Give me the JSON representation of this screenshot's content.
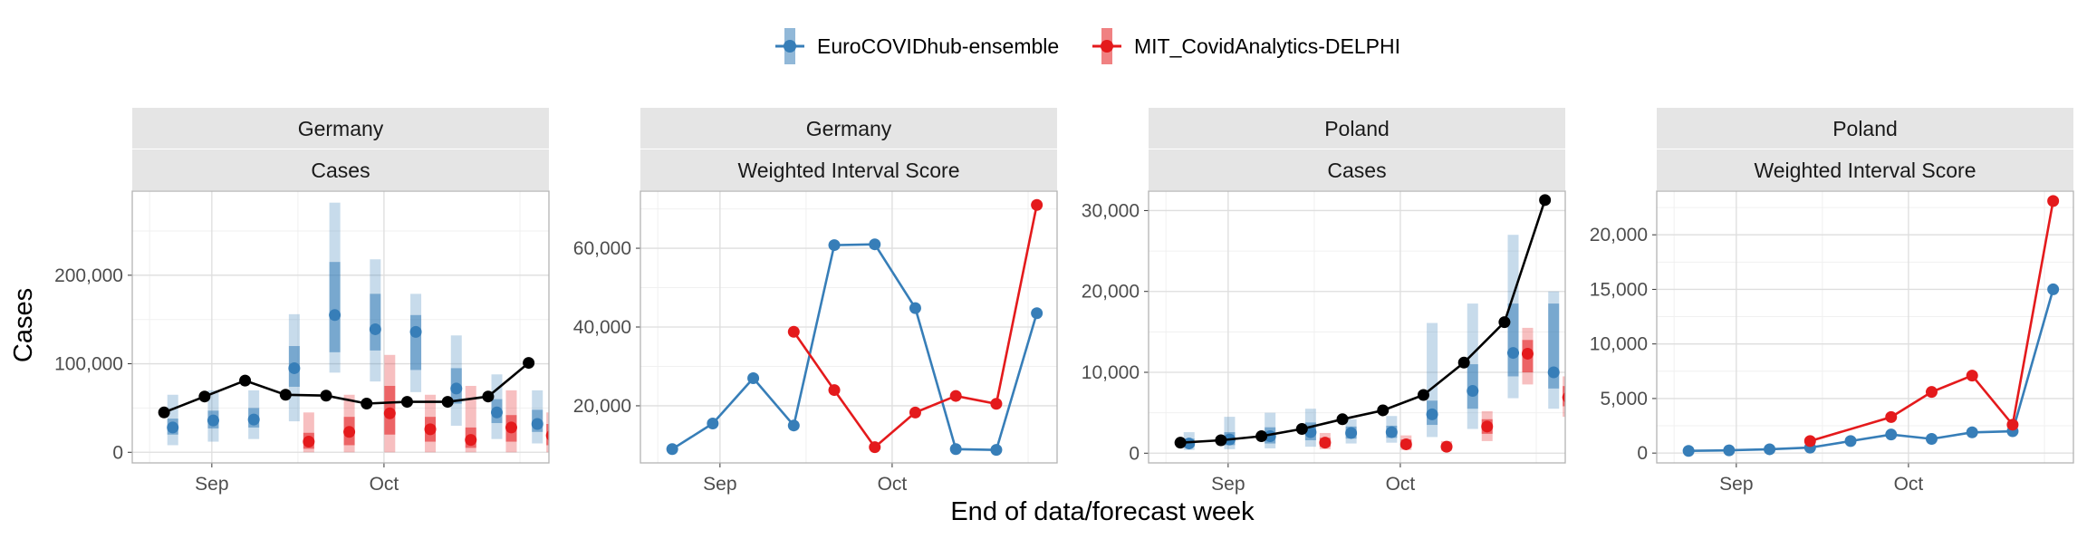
{
  "legend": [
    {
      "name": "EuroCOVIDhub-ensemble",
      "color": "#377eb8"
    },
    {
      "name": "MIT_CovidAnalytics-DELPHI",
      "color": "#e41a1c"
    }
  ],
  "x_axis_title": "End of data/forecast week",
  "y_axis_title": "Cases",
  "truth_color": "#000000",
  "chart_data": [
    {
      "type": "line",
      "panel": [
        "Germany",
        "Cases"
      ],
      "x_ticks": [
        "Sep",
        "Oct"
      ],
      "x_tick_pos": [
        1.65,
        7.6
      ],
      "x_domain": [
        -1.1,
        13.3
      ],
      "y_ticks": [
        0,
        100000,
        200000
      ],
      "y_tick_labels": [
        "0",
        "100,000",
        "200,000"
      ],
      "ylim": [
        -12000,
        295000
      ],
      "truth": [
        {
          "x": 0,
          "y": 45000
        },
        {
          "x": 1.4,
          "y": 63000
        },
        {
          "x": 2.8,
          "y": 81000
        },
        {
          "x": 4.2,
          "y": 65000
        },
        {
          "x": 5.6,
          "y": 64000
        },
        {
          "x": 7.0,
          "y": 55000
        },
        {
          "x": 8.4,
          "y": 57000
        },
        {
          "x": 9.8,
          "y": 57000
        },
        {
          "x": 11.2,
          "y": 63000
        },
        {
          "x": 12.6,
          "y": 101000
        }
      ],
      "forecasts": [
        {
          "model": 0,
          "points": [
            {
              "x": 0.3,
              "median": 28000,
              "inner": [
                20000,
                38000
              ],
              "outer": [
                8000,
                65000
              ]
            },
            {
              "x": 1.7,
              "median": 36000,
              "inner": [
                27000,
                47000
              ],
              "outer": [
                12000,
                70000
              ]
            },
            {
              "x": 3.1,
              "median": 37000,
              "inner": [
                28000,
                50000
              ],
              "outer": [
                15000,
                70000
              ]
            },
            {
              "x": 4.5,
              "median": 95000,
              "inner": [
                74000,
                120000
              ],
              "outer": [
                35000,
                156000
              ]
            },
            {
              "x": 5.9,
              "median": 155000,
              "inner": [
                113000,
                215000
              ],
              "outer": [
                90000,
                282000
              ]
            },
            {
              "x": 7.3,
              "median": 139000,
              "inner": [
                115000,
                179000
              ],
              "outer": [
                80000,
                218000
              ]
            },
            {
              "x": 8.7,
              "median": 136000,
              "inner": [
                93000,
                155000
              ],
              "outer": [
                68000,
                179000
              ]
            },
            {
              "x": 10.1,
              "median": 72000,
              "inner": [
                55000,
                95000
              ],
              "outer": [
                30000,
                132000
              ]
            },
            {
              "x": 11.5,
              "median": 45000,
              "inner": [
                33000,
                60000
              ],
              "outer": [
                15000,
                88000
              ]
            },
            {
              "x": 12.9,
              "median": 32000,
              "inner": [
                23000,
                48000
              ],
              "outer": [
                10000,
                70000
              ]
            }
          ]
        },
        {
          "model": 1,
          "points": [
            {
              "x": 5.0,
              "median": 12000,
              "inner": [
                4000,
                22000
              ],
              "outer": [
                0,
                45000
              ]
            },
            {
              "x": 6.4,
              "median": 23000,
              "inner": [
                8000,
                40000
              ],
              "outer": [
                0,
                65000
              ]
            },
            {
              "x": 7.8,
              "median": 44000,
              "inner": [
                20000,
                75000
              ],
              "outer": [
                0,
                110000
              ]
            },
            {
              "x": 9.2,
              "median": 26000,
              "inner": [
                12000,
                40000
              ],
              "outer": [
                0,
                65000
              ]
            },
            {
              "x": 10.6,
              "median": 14000,
              "inner": [
                5000,
                28000
              ],
              "outer": [
                0,
                75000
              ]
            },
            {
              "x": 12.0,
              "median": 28000,
              "inner": [
                12000,
                42000
              ],
              "outer": [
                0,
                70000
              ]
            },
            {
              "x": 13.4,
              "median": 19000,
              "inner": [
                8000,
                32000
              ],
              "outer": [
                0,
                45000
              ]
            }
          ]
        }
      ]
    },
    {
      "type": "line",
      "panel": [
        "Germany",
        "Weighted Interval Score"
      ],
      "x_ticks": [
        "Sep",
        "Oct"
      ],
      "x_tick_pos": [
        1.65,
        7.6
      ],
      "x_domain": [
        -1.1,
        13.3
      ],
      "y_ticks": [
        20000,
        40000,
        60000
      ],
      "y_tick_labels": [
        "20,000",
        "40,000",
        "60,000"
      ],
      "ylim": [
        5500,
        74500
      ],
      "series": [
        {
          "model": 0,
          "points": [
            {
              "x": 0,
              "y": 9000
            },
            {
              "x": 1.4,
              "y": 15500
            },
            {
              "x": 2.8,
              "y": 27000
            },
            {
              "x": 4.2,
              "y": 15000
            },
            {
              "x": 5.6,
              "y": 60800
            },
            {
              "x": 7.0,
              "y": 61000
            },
            {
              "x": 8.4,
              "y": 44800
            },
            {
              "x": 9.8,
              "y": 9000
            },
            {
              "x": 11.2,
              "y": 8800
            },
            {
              "x": 12.6,
              "y": 43500
            }
          ]
        },
        {
          "model": 1,
          "points": [
            {
              "x": 4.2,
              "y": 38800
            },
            {
              "x": 5.6,
              "y": 24000
            },
            {
              "x": 7.0,
              "y": 9500
            },
            {
              "x": 8.4,
              "y": 18300
            },
            {
              "x": 9.8,
              "y": 22500
            },
            {
              "x": 11.2,
              "y": 20500
            },
            {
              "x": 12.6,
              "y": 71000
            }
          ]
        }
      ]
    },
    {
      "type": "line",
      "panel": [
        "Poland",
        "Cases"
      ],
      "x_ticks": [
        "Sep",
        "Oct"
      ],
      "x_tick_pos": [
        1.65,
        7.6
      ],
      "x_domain": [
        -1.1,
        13.3
      ],
      "y_ticks": [
        0,
        10000,
        20000,
        30000
      ],
      "y_tick_labels": [
        "0",
        "10,000",
        "20,000",
        "30,000"
      ],
      "ylim": [
        -1200,
        32400
      ],
      "truth": [
        {
          "x": 0,
          "y": 1300
        },
        {
          "x": 1.4,
          "y": 1600
        },
        {
          "x": 2.8,
          "y": 2100
        },
        {
          "x": 4.2,
          "y": 3000
        },
        {
          "x": 5.6,
          "y": 4200
        },
        {
          "x": 7.0,
          "y": 5300
        },
        {
          "x": 8.4,
          "y": 7200
        },
        {
          "x": 9.8,
          "y": 11200
        },
        {
          "x": 11.2,
          "y": 16200
        },
        {
          "x": 12.6,
          "y": 31300
        }
      ],
      "forecasts": [
        {
          "model": 0,
          "points": [
            {
              "x": 0.3,
              "median": 1200,
              "inner": [
                800,
                1800
              ],
              "outer": [
                400,
                2600
              ]
            },
            {
              "x": 1.7,
              "median": 1700,
              "inner": [
                1000,
                2600
              ],
              "outer": [
                500,
                4500
              ]
            },
            {
              "x": 3.1,
              "median": 2100,
              "inner": [
                1200,
                3200
              ],
              "outer": [
                600,
                5000
              ]
            },
            {
              "x": 4.5,
              "median": 2600,
              "inner": [
                1600,
                3800
              ],
              "outer": [
                800,
                5500
              ]
            },
            {
              "x": 5.9,
              "median": 2500,
              "inner": [
                1800,
                3300
              ],
              "outer": [
                1200,
                4200
              ]
            },
            {
              "x": 7.3,
              "median": 2600,
              "inner": [
                1900,
                3400
              ],
              "outer": [
                1300,
                4600
              ]
            },
            {
              "x": 8.7,
              "median": 4800,
              "inner": [
                3500,
                6500
              ],
              "outer": [
                2000,
                16100
              ]
            },
            {
              "x": 10.1,
              "median": 7700,
              "inner": [
                5500,
                11000
              ],
              "outer": [
                3000,
                18500
              ]
            },
            {
              "x": 11.5,
              "median": 12400,
              "inner": [
                9500,
                18500
              ],
              "outer": [
                6800,
                27000
              ]
            },
            {
              "x": 12.9,
              "median": 10000,
              "inner": [
                8000,
                18500
              ],
              "outer": [
                5500,
                20000
              ]
            }
          ]
        },
        {
          "model": 1,
          "points": [
            {
              "x": 5.0,
              "median": 1300,
              "inner": [
                800,
                1900
              ],
              "outer": [
                500,
                2500
              ]
            },
            {
              "x": 7.8,
              "median": 1100,
              "inner": [
                700,
                1700
              ],
              "outer": [
                400,
                2200
              ]
            },
            {
              "x": 9.2,
              "median": 800,
              "inner": [
                500,
                1100
              ],
              "outer": [
                300,
                1500
              ]
            },
            {
              "x": 10.6,
              "median": 3300,
              "inner": [
                2400,
                4200
              ],
              "outer": [
                1500,
                5200
              ]
            },
            {
              "x": 12.0,
              "median": 12300,
              "inner": [
                10000,
                14000
              ],
              "outer": [
                8500,
                15500
              ]
            },
            {
              "x": 13.4,
              "median": 6900,
              "inner": [
                5800,
                8300
              ],
              "outer": [
                4500,
                9500
              ]
            }
          ]
        }
      ]
    },
    {
      "type": "line",
      "panel": [
        "Poland",
        "Weighted Interval Score"
      ],
      "x_ticks": [
        "Sep",
        "Oct"
      ],
      "x_tick_pos": [
        1.65,
        7.6
      ],
      "x_domain": [
        -1.1,
        13.3
      ],
      "y_ticks": [
        0,
        5000,
        10000,
        15000,
        20000
      ],
      "y_tick_labels": [
        "0",
        "5,000",
        "10,000",
        "15,000",
        "20,000"
      ],
      "ylim": [
        -900,
        24000
      ],
      "series": [
        {
          "model": 0,
          "points": [
            {
              "x": 0,
              "y": 200
            },
            {
              "x": 1.4,
              "y": 250
            },
            {
              "x": 2.8,
              "y": 350
            },
            {
              "x": 4.2,
              "y": 500
            },
            {
              "x": 5.6,
              "y": 1100
            },
            {
              "x": 7.0,
              "y": 1700
            },
            {
              "x": 8.4,
              "y": 1300
            },
            {
              "x": 9.8,
              "y": 1900
            },
            {
              "x": 11.2,
              "y": 2000
            },
            {
              "x": 12.6,
              "y": 15000
            }
          ]
        },
        {
          "model": 1,
          "points": [
            {
              "x": 4.2,
              "y": 1100
            },
            {
              "x": 7.0,
              "y": 3300
            },
            {
              "x": 8.4,
              "y": 5600
            },
            {
              "x": 9.8,
              "y": 7100
            },
            {
              "x": 11.2,
              "y": 2600
            },
            {
              "x": 12.6,
              "y": 23100
            }
          ]
        }
      ]
    }
  ]
}
